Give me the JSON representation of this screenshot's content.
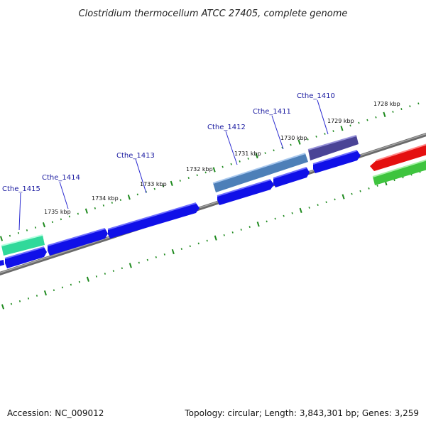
{
  "title": "Clostridium thermocellum ATCC 27405, complete genome",
  "footer": {
    "accession": "Accession: NC_009012",
    "summary": "Topology: circular; Length: 3,843,301 bp; Genes: 3,259"
  },
  "kbp_labels": [
    "1728 kbp",
    "1729 kbp",
    "1730 kbp",
    "1731 kbp",
    "1732 kbp",
    "1733 kbp",
    "1734 kbp",
    "1735 kbp"
  ],
  "gene_labels": [
    "Cthe_1410",
    "Cthe_1411",
    "Cthe_1412",
    "Cthe_1413",
    "Cthe_1414",
    "Cthe_1415"
  ],
  "colors": {
    "backbone": "#888888",
    "ticks": "#1e8a1e",
    "cds": "#1010e8",
    "gene_1410": "#4a4496",
    "gene_1412": "#4d7fb8",
    "gene_1415": "#30d99a",
    "red_feature": "#e41010",
    "green_feature": "#3ec43e"
  }
}
